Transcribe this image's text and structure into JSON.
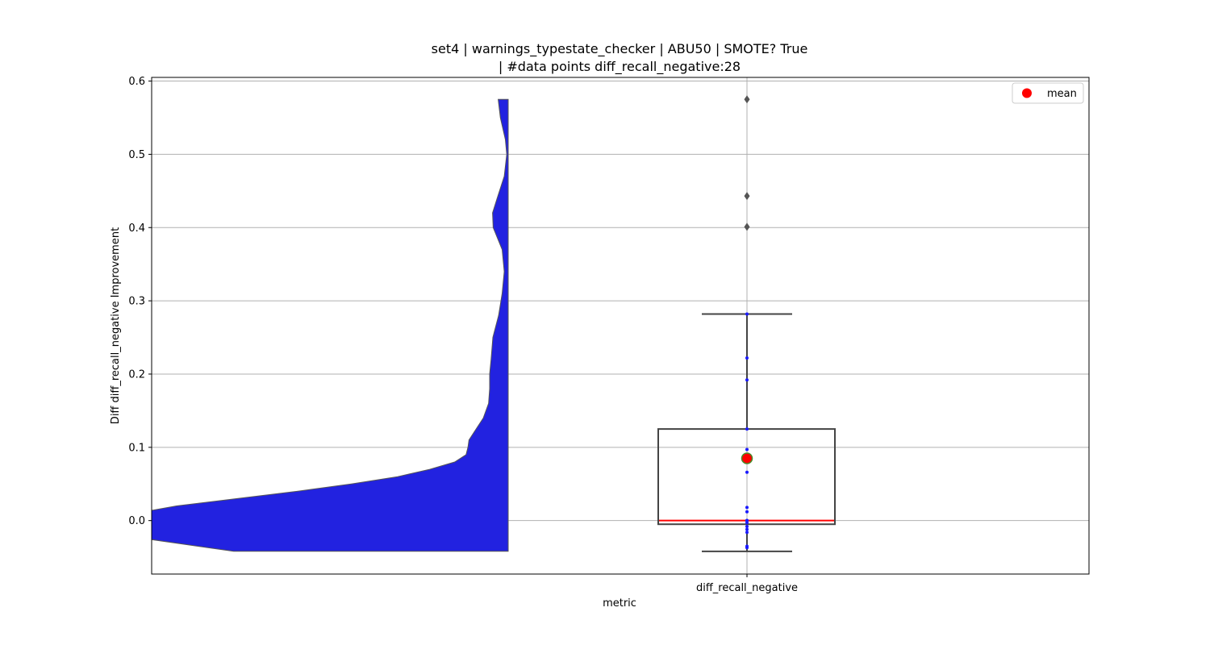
{
  "chart_data": {
    "type": "violin+box",
    "title_line1": "set4 | warnings_typestate_checker | ABU50 | SMOTE? True",
    "title_line2": "| #data points diff_recall_negative:28",
    "xlabel": "metric",
    "ylabel": "Diff diff_recall_negative Improvement",
    "categories": [
      "diff_recall_negative"
    ],
    "ylim": [
      -0.073,
      0.605
    ],
    "yticks": [
      0.0,
      0.1,
      0.2,
      0.3,
      0.4,
      0.5,
      0.6
    ],
    "ytick_labels": [
      "0.0",
      "0.1",
      "0.2",
      "0.3",
      "0.4",
      "0.5",
      "0.6"
    ],
    "grid": true,
    "legend": {
      "placement": "top-right",
      "entries": [
        {
          "label": "mean",
          "color": "#ff0000"
        }
      ]
    },
    "violin": {
      "color": "#2222e0",
      "side": "left-half",
      "min": -0.042,
      "max": 0.575,
      "density_profile": [
        [
          -0.042,
          0.77
        ],
        [
          -0.026,
          1.0
        ],
        [
          0.014,
          1.0
        ],
        [
          0.02,
          0.93
        ],
        [
          0.03,
          0.76
        ],
        [
          0.04,
          0.59
        ],
        [
          0.05,
          0.44
        ],
        [
          0.06,
          0.31
        ],
        [
          0.07,
          0.22
        ],
        [
          0.08,
          0.15
        ],
        [
          0.09,
          0.118
        ],
        [
          0.1,
          0.113
        ],
        [
          0.11,
          0.11
        ],
        [
          0.125,
          0.09
        ],
        [
          0.14,
          0.07
        ],
        [
          0.16,
          0.055
        ],
        [
          0.18,
          0.052
        ],
        [
          0.2,
          0.052
        ],
        [
          0.22,
          0.048
        ],
        [
          0.25,
          0.043
        ],
        [
          0.28,
          0.027
        ],
        [
          0.31,
          0.017
        ],
        [
          0.34,
          0.011
        ],
        [
          0.37,
          0.017
        ],
        [
          0.4,
          0.042
        ],
        [
          0.42,
          0.044
        ],
        [
          0.44,
          0.031
        ],
        [
          0.47,
          0.011
        ],
        [
          0.5,
          0.004
        ],
        [
          0.52,
          0.008
        ],
        [
          0.55,
          0.022
        ],
        [
          0.575,
          0.028
        ]
      ]
    },
    "box": {
      "whisker_low": -0.042,
      "q1": -0.005,
      "median": 0.0,
      "q3": 0.125,
      "whisker_high": 0.282,
      "mean": 0.085,
      "outliers": [
        0.401,
        0.443,
        0.575
      ]
    },
    "points": [
      -0.037,
      -0.035,
      -0.016,
      -0.012,
      -0.008,
      -0.003,
      0.0,
      0.0,
      0.0,
      0.012,
      0.018,
      0.066,
      0.087,
      0.097,
      0.125,
      0.192,
      0.222,
      0.282
    ],
    "colors": {
      "box_edge": "#444444",
      "median": "#ff0000",
      "mean_fill": "#ff0000",
      "mean_edge": "#4a8a2a",
      "points": "#1a1aff",
      "outlier": "#555555",
      "grid": "#b0b0b0"
    }
  }
}
